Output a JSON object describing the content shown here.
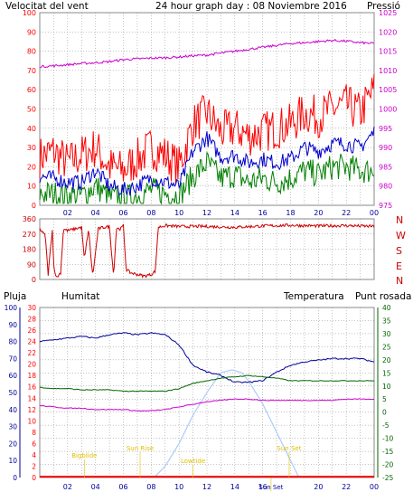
{
  "header": {
    "left_title": "Velocitat del vent",
    "center_title": "24 hour graph day : 08 Noviembre 2016",
    "right_title": "Pressió"
  },
  "colors": {
    "wind_gust": "#ff0000",
    "wind_avg": "#0000cc",
    "wind_low": "#008000",
    "pressure": "#cc00cc",
    "direction": "#cc0000",
    "humidity": "#000099",
    "temperature": "#006600",
    "dewpoint": "#cc00cc",
    "rain": "#ff0000",
    "solar": "#aaccff",
    "sun_label": "#e0c000",
    "grid": "#888888"
  },
  "x_ticks": [
    "02",
    "04",
    "06",
    "08",
    "10",
    "12",
    "14",
    "16",
    "18",
    "20",
    "22",
    "00"
  ],
  "chart_data": [
    {
      "type": "line",
      "title": "24 hour graph day : 08 Noviembre 2016",
      "ylabel": "Velocitat del vent",
      "y2label": "Pressió",
      "ylim": [
        0,
        100
      ],
      "y2lim": [
        975,
        1025
      ],
      "yticks": [
        0,
        10,
        20,
        30,
        40,
        50,
        60,
        70,
        80,
        90,
        100
      ],
      "y2ticks": [
        975,
        980,
        985,
        990,
        995,
        1000,
        1005,
        1010,
        1015,
        1020,
        1025
      ],
      "grid": true,
      "x_hours": [
        0,
        1,
        2,
        3,
        4,
        5,
        6,
        7,
        8,
        9,
        10,
        11,
        12,
        13,
        14,
        15,
        16,
        17,
        18,
        19,
        20,
        21,
        22,
        23,
        24
      ],
      "series": [
        {
          "key": "gust",
          "values": [
            25,
            28,
            22,
            26,
            30,
            20,
            18,
            24,
            30,
            26,
            20,
            42,
            48,
            38,
            40,
            36,
            38,
            40,
            42,
            48,
            46,
            50,
            52,
            48,
            60
          ]
        },
        {
          "key": "avg",
          "values": [
            15,
            14,
            12,
            12,
            18,
            10,
            8,
            10,
            14,
            12,
            10,
            28,
            35,
            25,
            26,
            22,
            24,
            22,
            24,
            30,
            28,
            32,
            32,
            30,
            38
          ]
        },
        {
          "key": "low",
          "values": [
            6,
            6,
            5,
            5,
            10,
            4,
            4,
            5,
            8,
            6,
            5,
            15,
            22,
            14,
            16,
            12,
            14,
            12,
            14,
            18,
            16,
            20,
            20,
            18,
            18
          ]
        },
        {
          "key": "pressure",
          "values": [
            1011,
            1011.2,
            1011.5,
            1011.8,
            1012,
            1012.3,
            1012.8,
            1013,
            1013.2,
            1013.3,
            1013.5,
            1013.8,
            1014,
            1014.5,
            1015,
            1015.5,
            1016,
            1016.5,
            1017,
            1017.2,
            1017.5,
            1017.8,
            1017.6,
            1017.2,
            1017
          ]
        }
      ]
    },
    {
      "type": "line",
      "yticks": [
        0,
        90,
        180,
        270,
        360
      ],
      "ylim": [
        0,
        360
      ],
      "right_labels": [
        "N",
        "W",
        "S",
        "E",
        "N"
      ],
      "grid": true,
      "series": [
        {
          "key": "direction",
          "x_hours": [
            0,
            0.4,
            0.6,
            0.9,
            1.0,
            1.2,
            1.5,
            1.7,
            2.0,
            2.5,
            3,
            3.2,
            3.5,
            3.8,
            4.2,
            4.6,
            5,
            5.3,
            5.5,
            5.8,
            6.0,
            6.2,
            6.5,
            7,
            7.5,
            8,
            8.3,
            8.5,
            9,
            10,
            12,
            14,
            16,
            18,
            20,
            22,
            24
          ],
          "values": [
            300,
            260,
            30,
            300,
            80,
            10,
            40,
            300,
            290,
            300,
            310,
            120,
            300,
            20,
            300,
            310,
            315,
            20,
            305,
            300,
            320,
            60,
            40,
            30,
            20,
            30,
            50,
            310,
            320,
            315,
            315,
            310,
            318,
            322,
            318,
            320,
            315
          ]
        }
      ]
    },
    {
      "type": "line",
      "legend": [
        "Pluja",
        "Humitat",
        "Temperatura",
        "Punt rosada"
      ],
      "y_rain_ticks": [
        0,
        2,
        4,
        6,
        8,
        10,
        12,
        14,
        16,
        18,
        20,
        22,
        24,
        26,
        28,
        30
      ],
      "y_hum_ticks": [
        0,
        10,
        20,
        30,
        40,
        50,
        60,
        70,
        80,
        90,
        100
      ],
      "y_temp_ticks": [
        -25,
        -20,
        -15,
        -10,
        -5,
        0,
        5,
        10,
        15,
        20,
        25,
        30,
        35,
        40
      ],
      "ylim_temp": [
        -25,
        40
      ],
      "ylim_hum": [
        0,
        100
      ],
      "x_hours": [
        0,
        1,
        2,
        3,
        4,
        5,
        6,
        7,
        8,
        9,
        10,
        11,
        12,
        13,
        14,
        15,
        16,
        17,
        18,
        19,
        20,
        21,
        22,
        23,
        24
      ],
      "series": [
        {
          "key": "humidity",
          "values": [
            80,
            81,
            82,
            83,
            82,
            84,
            85,
            84,
            85,
            84,
            78,
            66,
            62,
            60,
            56,
            56,
            57,
            62,
            66,
            68,
            69,
            70,
            70,
            70,
            68
          ]
        },
        {
          "key": "temperature",
          "values": [
            9.5,
            9,
            9,
            8.5,
            8.5,
            8.5,
            8,
            8,
            8,
            8,
            9,
            11,
            12,
            13,
            13.5,
            14,
            13.5,
            13,
            12,
            12,
            12,
            12,
            12,
            12,
            12
          ]
        },
        {
          "key": "dewpoint",
          "values": [
            2.5,
            2,
            1.5,
            1.5,
            1,
            1,
            1,
            0.5,
            0.5,
            1,
            2,
            3,
            4,
            4.5,
            5,
            5,
            4.5,
            4.5,
            4.5,
            4.5,
            4.5,
            4.5,
            5,
            5,
            5
          ]
        },
        {
          "key": "rain",
          "values": [
            0,
            0,
            0,
            0,
            0,
            0,
            0,
            0,
            0,
            0,
            0,
            0,
            0,
            0,
            0,
            0,
            0,
            0,
            0,
            0,
            0,
            0,
            0,
            0,
            0
          ]
        },
        {
          "key": "solar",
          "x_hours": [
            8.2,
            9,
            10,
            11,
            12,
            13,
            13.8,
            14.5,
            15,
            16,
            17,
            18,
            18.6
          ],
          "values": [
            0,
            2,
            6,
            11,
            15,
            18.5,
            19,
            18.5,
            17,
            13,
            8,
            3,
            0
          ]
        }
      ],
      "annotations": [
        {
          "label": "Bigblide",
          "hour": 3.2
        },
        {
          "label": "Sun Rise",
          "hour": 7.2
        },
        {
          "label": "Lowtide",
          "hour": 11.0
        },
        {
          "label": "Sun Set",
          "hour": 17.9
        },
        {
          "label": "Sun Set",
          "hour": 16.6
        }
      ]
    }
  ]
}
